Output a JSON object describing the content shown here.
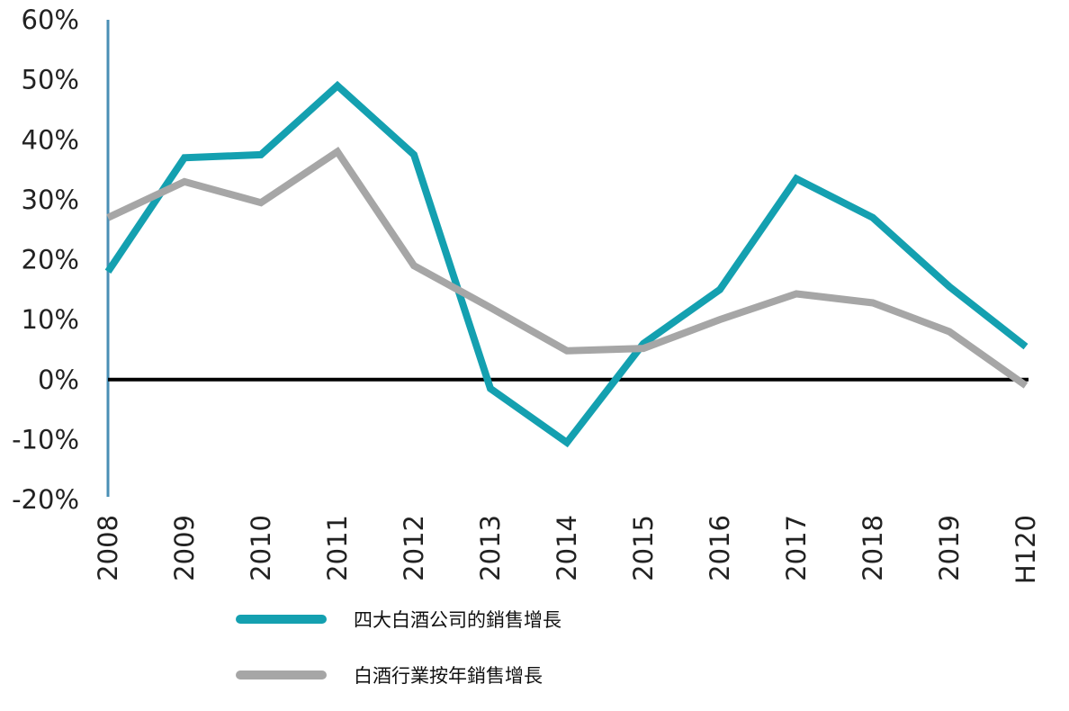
{
  "chart_data": {
    "type": "line",
    "categories": [
      "2008",
      "2009",
      "2010",
      "2011",
      "2012",
      "2013",
      "2014",
      "2015",
      "2016",
      "2017",
      "2018",
      "2019",
      "H120"
    ],
    "series": [
      {
        "name": "四大白酒公司的銷售增長",
        "color": "#14a0b0",
        "values": [
          18,
          37,
          37.5,
          49,
          37.5,
          -1.5,
          -10.5,
          6,
          15,
          33.5,
          27,
          15.5,
          5.5
        ]
      },
      {
        "name": "白酒行業按年銷售增長",
        "color": "#a6a6a6",
        "values": [
          27,
          33,
          29.5,
          38,
          19,
          12,
          4.8,
          5.2,
          10,
          14.3,
          12.8,
          8,
          -1
        ]
      }
    ],
    "yticks": [
      "60%",
      "50%",
      "40%",
      "30%",
      "20%",
      "10%",
      "0%",
      "-10%",
      "-20%"
    ],
    "ylim": [
      -20,
      60
    ],
    "title": "",
    "xlabel": "",
    "ylabel": "",
    "grid": false,
    "legend_position": "bottom",
    "zero_line_color": "#000000",
    "axis_color": "#4a8fb5"
  }
}
